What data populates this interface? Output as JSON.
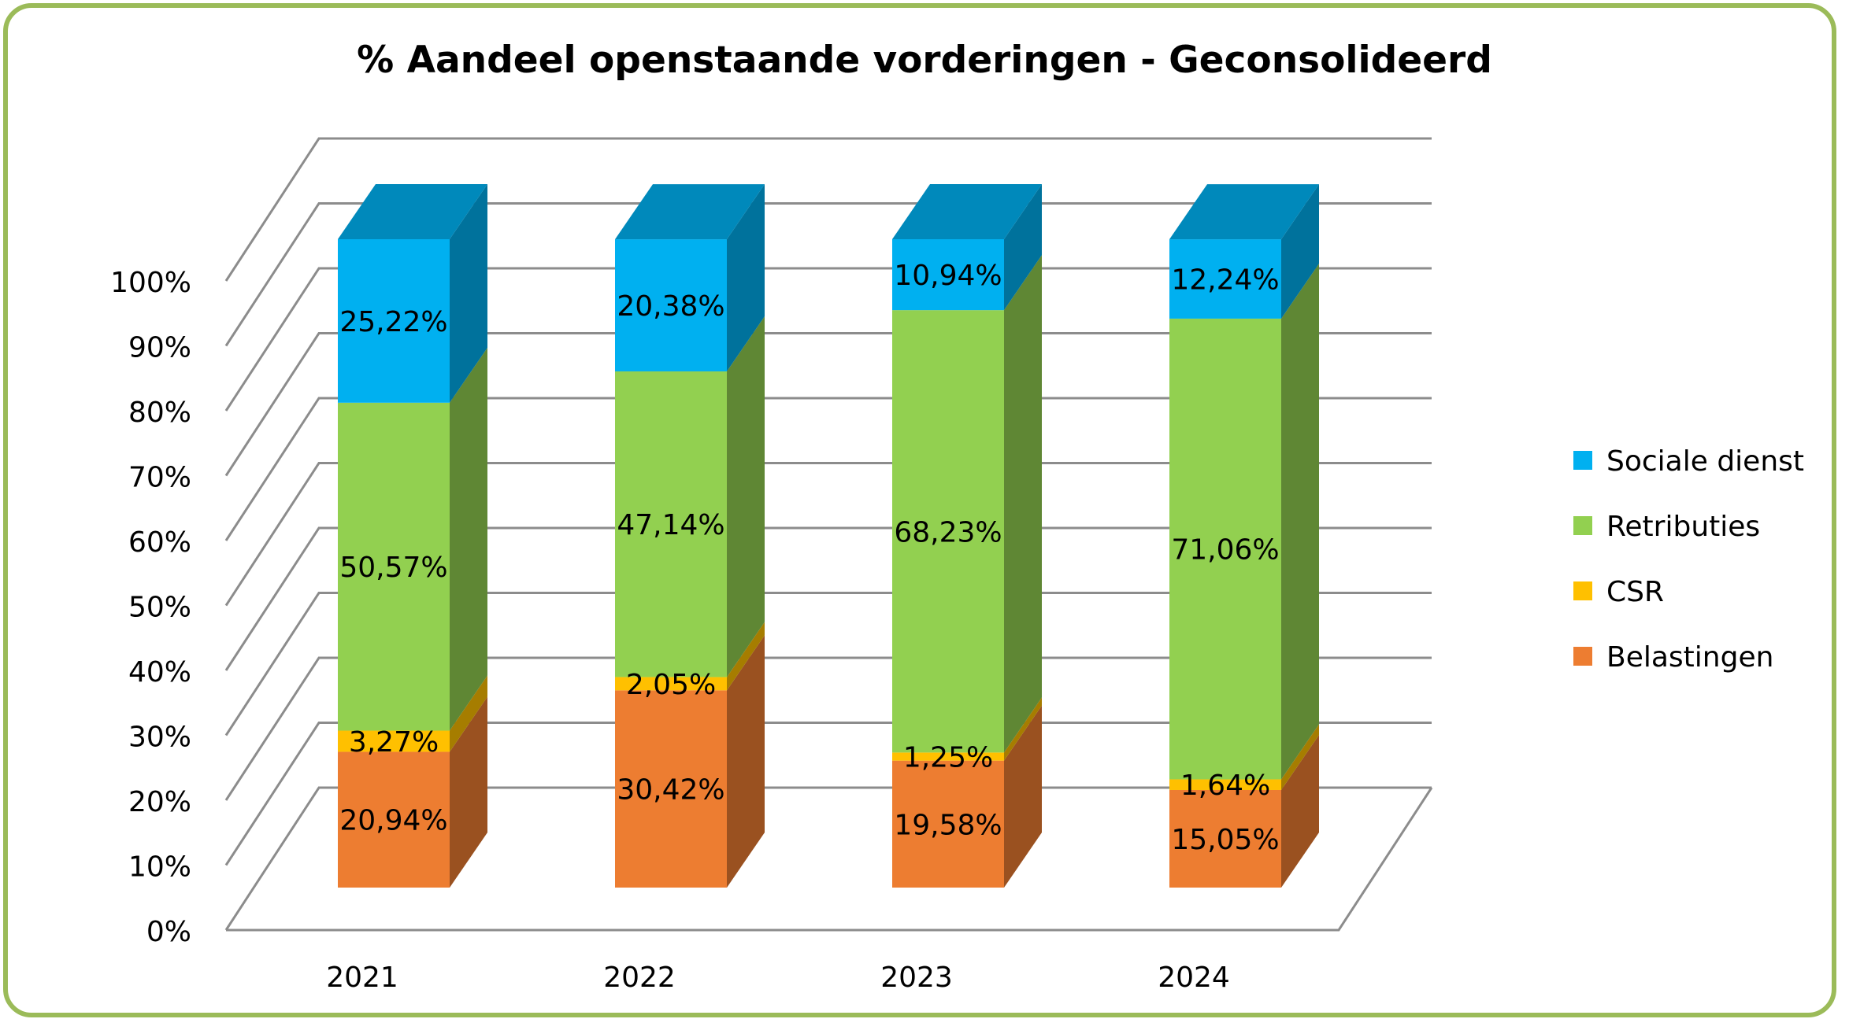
{
  "chart_data": {
    "type": "bar",
    "stacked": true,
    "three_d": true,
    "title": "% Aandeel openstaande vorderingen - Geconsolideerd",
    "xlabel": "",
    "ylabel": "",
    "ylim": [
      0,
      100
    ],
    "y_ticks": [
      "0%",
      "10%",
      "20%",
      "30%",
      "40%",
      "50%",
      "60%",
      "70%",
      "80%",
      "90%",
      "100%"
    ],
    "categories": [
      "2021",
      "2022",
      "2023",
      "2024"
    ],
    "series": [
      {
        "name": "Belastingen",
        "color": "#ED7D31",
        "values": [
          20.94,
          30.42,
          19.58,
          15.05
        ],
        "labels": [
          "20,94%",
          "30,42%",
          "19,58%",
          "15,05%"
        ]
      },
      {
        "name": "CSR",
        "color": "#FFC000",
        "values": [
          3.27,
          2.05,
          1.25,
          1.64
        ],
        "labels": [
          "3,27%",
          "2,05%",
          "1,25%",
          "1,64%"
        ]
      },
      {
        "name": "Retributies",
        "color": "#92D050",
        "values": [
          50.57,
          47.14,
          68.23,
          71.06
        ],
        "labels": [
          "50,57%",
          "47,14%",
          "68,23%",
          "71,06%"
        ]
      },
      {
        "name": "Sociale dienst",
        "color": "#00B0F0",
        "values": [
          25.22,
          20.38,
          10.94,
          12.24
        ],
        "labels": [
          "25,22%",
          "20,38%",
          "10,94%",
          "12,24%"
        ]
      }
    ],
    "grid": true,
    "legend_position": "right",
    "legend_order": [
      "Sociale dienst",
      "Retributies",
      "CSR",
      "Belastingen"
    ]
  },
  "colors": {
    "frame_border": "#9BBB59",
    "gridline": "#8C8C8C"
  }
}
